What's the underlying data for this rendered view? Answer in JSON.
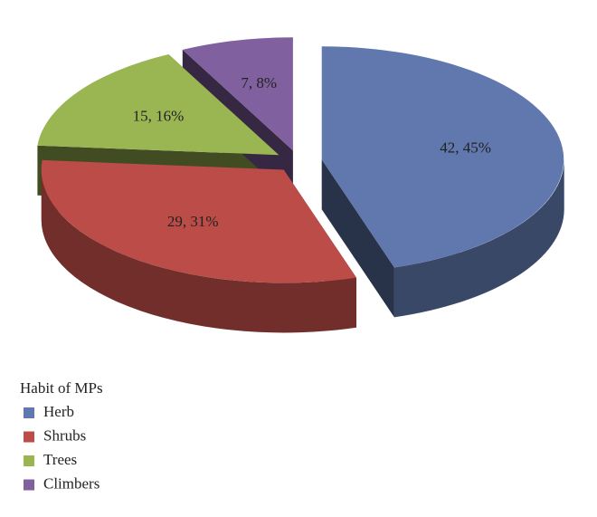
{
  "chart_data": {
    "type": "pie3d",
    "categories": [
      "Herb",
      "Shrubs",
      "Trees",
      "Climbers"
    ],
    "values": [
      42,
      29,
      15,
      7
    ],
    "value_labels": [
      "42, 45%",
      "29, 31%",
      "15, 16%",
      "7, 8%"
    ],
    "colors": [
      "#6078ae",
      "#bc4c48",
      "#9ab653",
      "#8160a0"
    ],
    "legend_title": "Habit of MPs",
    "legend_position": "bottom-left"
  }
}
